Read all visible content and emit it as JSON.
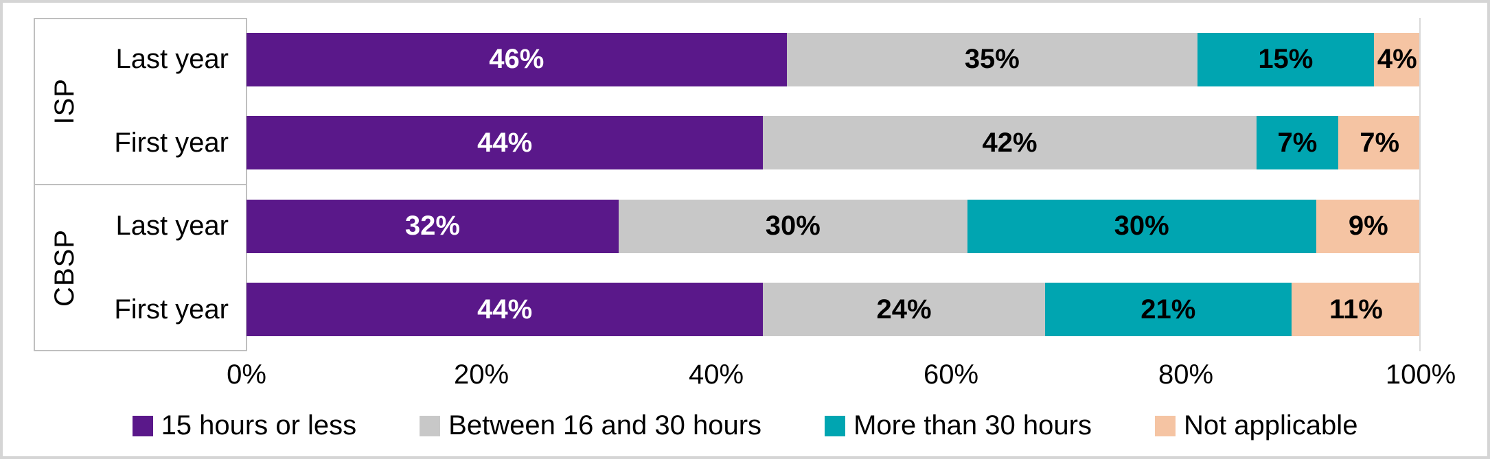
{
  "chart_data": {
    "type": "bar",
    "orientation": "horizontal",
    "stacked": true,
    "value_suffix": "%",
    "xlim": [
      0,
      100
    ],
    "x_ticks": [
      "0%",
      "20%",
      "40%",
      "60%",
      "80%",
      "100%"
    ],
    "x_tick_positions": [
      0,
      20,
      40,
      60,
      80,
      100
    ],
    "grid": "right-edge-only",
    "legend_position": "bottom",
    "series": [
      {
        "name": "15 hours or less",
        "color": "#5A188A",
        "label_color": "#ffffff"
      },
      {
        "name": "Between 16 and 30 hours",
        "color": "#C8C8C8",
        "label_color": "#000000"
      },
      {
        "name": "More than 30 hours",
        "color": "#00A5B1",
        "label_color": "#000000"
      },
      {
        "name": "Not applicable",
        "color": "#F5C4A3",
        "label_color": "#000000"
      }
    ],
    "groups": [
      {
        "label": "ISP",
        "rows": [
          {
            "label": "Last year",
            "values": [
              46,
              35,
              15,
              4
            ],
            "labels": [
              "46%",
              "35%",
              "15%",
              "4%"
            ]
          },
          {
            "label": "First year",
            "values": [
              44,
              42,
              7,
              7
            ],
            "labels": [
              "44%",
              "42%",
              "7%",
              "7%"
            ]
          }
        ]
      },
      {
        "label": "CBSP",
        "rows": [
          {
            "label": "Last year",
            "values": [
              32,
              30,
              30,
              9
            ],
            "labels": [
              "32%",
              "30%",
              "30%",
              "9%"
            ]
          },
          {
            "label": "First year",
            "values": [
              44,
              24,
              21,
              11
            ],
            "labels": [
              "44%",
              "24%",
              "21%",
              "11%"
            ]
          }
        ]
      }
    ]
  },
  "colors": {
    "frame_border": "#d5d5d5",
    "axis_line": "#bfbfbf",
    "gridline": "#d9d9d9",
    "background": "#ffffff"
  }
}
